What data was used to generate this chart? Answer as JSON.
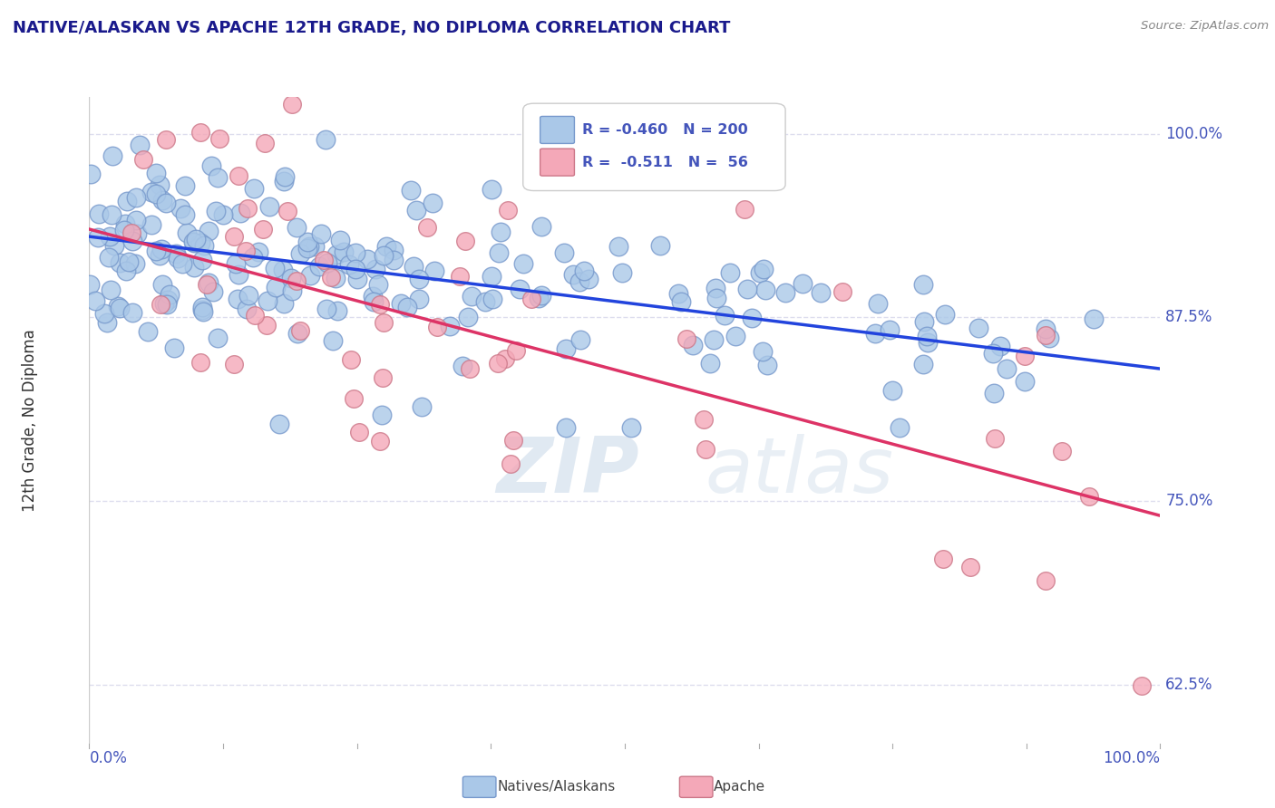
{
  "title": "NATIVE/ALASKAN VS APACHE 12TH GRADE, NO DIPLOMA CORRELATION CHART",
  "source_text": "Source: ZipAtlas.com",
  "ylabel": "12th Grade, No Diploma",
  "legend_label_blue": "Natives/Alaskans",
  "legend_label_pink": "Apache",
  "r_blue": -0.46,
  "n_blue": 200,
  "r_pink": -0.511,
  "n_pink": 56,
  "xlim": [
    0.0,
    1.0
  ],
  "ylim": [
    0.585,
    1.025
  ],
  "yticks": [
    0.625,
    0.75,
    0.875,
    1.0
  ],
  "ytick_labels": [
    "62.5%",
    "75.0%",
    "87.5%",
    "100.0%"
  ],
  "xtick_labels": [
    "0.0%",
    "100.0%"
  ],
  "xticks": [
    0.0,
    1.0
  ],
  "color_blue": "#aac8e8",
  "color_pink": "#f4a8b8",
  "line_color_blue": "#2244dd",
  "line_color_pink": "#dd3366",
  "background_color": "#ffffff",
  "title_color": "#1a1a8c",
  "axis_color": "#4455bb",
  "grid_color": "#ddddee",
  "watermark_zip": "ZIP",
  "watermark_atlas": "atlas",
  "blue_intercept": 0.93,
  "blue_slope": -0.09,
  "pink_intercept": 0.935,
  "pink_slope": -0.195
}
